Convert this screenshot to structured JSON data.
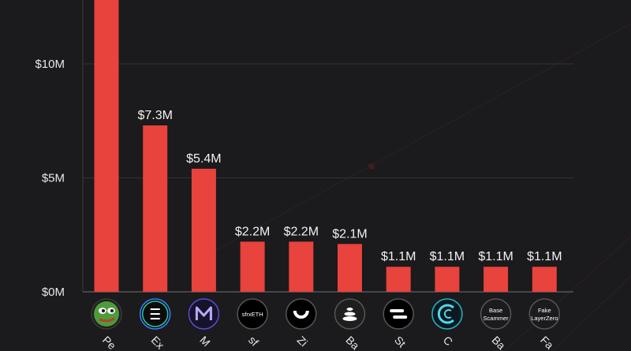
{
  "chart_data": {
    "type": "bar",
    "categories": [
      "Pe",
      "Ex",
      "M",
      "sf",
      "Zi",
      "Ba",
      "St",
      "C",
      "Ba",
      "Fa"
    ],
    "values": [
      13.0,
      7.3,
      5.4,
      2.2,
      2.2,
      2.1,
      1.1,
      1.1,
      1.1,
      1.1
    ],
    "value_labels": [
      "",
      "$7.3M",
      "$5.4M",
      "$2.2M",
      "$2.2M",
      "$2.1M",
      "$1.1M",
      "$1.1M",
      "$1.1M",
      "$1.1M"
    ],
    "yticks": [
      {
        "value": 0,
        "label": "$0M"
      },
      {
        "value": 5,
        "label": "$5M"
      },
      {
        "value": 10,
        "label": "$10M"
      }
    ],
    "ylim": [
      0,
      12.8
    ],
    "grid": true,
    "title": "",
    "xlabel": "",
    "ylabel": "",
    "bar_color": "#e8433c",
    "icons": [
      {
        "name": "pepe-icon",
        "bg": "#1e1e1e",
        "ring": "#3a3a3a",
        "text": ""
      },
      {
        "name": "ethena-icon",
        "bg": "#0c0c0c",
        "ring": "#3d7fff",
        "text": ""
      },
      {
        "name": "mantle-icon",
        "bg": "#16142a",
        "ring": "#5d4bd4",
        "text": ""
      },
      {
        "name": "sfrxeth-icon",
        "bg": "#000000",
        "ring": "#555555",
        "text": "sfrxETH"
      },
      {
        "name": "zircuit-icon",
        "bg": "#000000",
        "ring": "#555555",
        "text": ""
      },
      {
        "name": "balancer-icon",
        "bg": "#1e1e1e",
        "ring": "#555555",
        "text": ""
      },
      {
        "name": "stader-icon",
        "bg": "#000000",
        "ring": "#555555",
        "text": ""
      },
      {
        "name": "c-token-icon",
        "bg": "#0b1a20",
        "ring": "#23b5c8",
        "text": ""
      },
      {
        "name": "base-scammer-icon",
        "bg": "#1b1a1c",
        "ring": "#555555",
        "text": "Base|Scammer"
      },
      {
        "name": "fake-layerzero-icon",
        "bg": "#1b1a1c",
        "ring": "#555555",
        "text": "Fake|LayerZero"
      }
    ]
  }
}
